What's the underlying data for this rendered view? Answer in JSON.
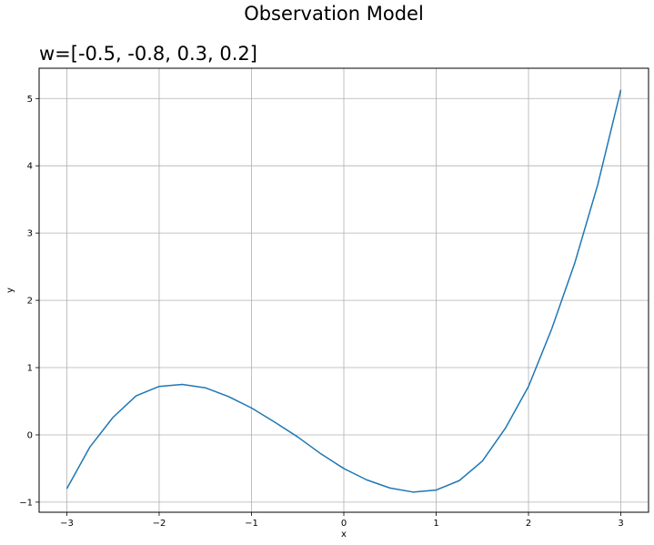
{
  "figure": {
    "suptitle": "Observation Model",
    "title": "w=[-0.5, -0.8, 0.3, 0.2]"
  },
  "chart_data": {
    "type": "line",
    "xlabel": "x",
    "ylabel": "y",
    "xlim": [
      -3.3,
      3.3
    ],
    "ylim": [
      -1.15,
      5.45
    ],
    "grid": true,
    "xticks": [
      -3,
      -2,
      -1,
      0,
      1,
      2,
      3
    ],
    "yticks": [
      -1,
      0,
      1,
      2,
      3,
      4,
      5
    ],
    "xtick_labels": [
      "−3",
      "−2",
      "−1",
      "0",
      "1",
      "2",
      "3"
    ],
    "ytick_labels": [
      "−1",
      "0",
      "1",
      "2",
      "3",
      "4",
      "5"
    ],
    "series": [
      {
        "color": "#1f77b4",
        "x": [
          -3.0,
          -2.75,
          -2.5,
          -2.25,
          -2.0,
          -1.75,
          -1.5,
          -1.25,
          -1.0,
          -0.75,
          -0.5,
          -0.25,
          0.0,
          0.25,
          0.5,
          0.75,
          1.0,
          1.25,
          1.5,
          1.75,
          2.0,
          2.25,
          2.5,
          2.75,
          3.0
        ],
        "y": [
          -0.8,
          -0.18,
          0.26,
          0.58,
          0.72,
          0.75,
          0.7,
          0.57,
          0.4,
          0.19,
          -0.03,
          -0.28,
          -0.5,
          -0.67,
          -0.79,
          -0.85,
          -0.82,
          -0.68,
          -0.39,
          0.1,
          0.72,
          1.57,
          2.55,
          3.72,
          5.13
        ]
      }
    ]
  }
}
